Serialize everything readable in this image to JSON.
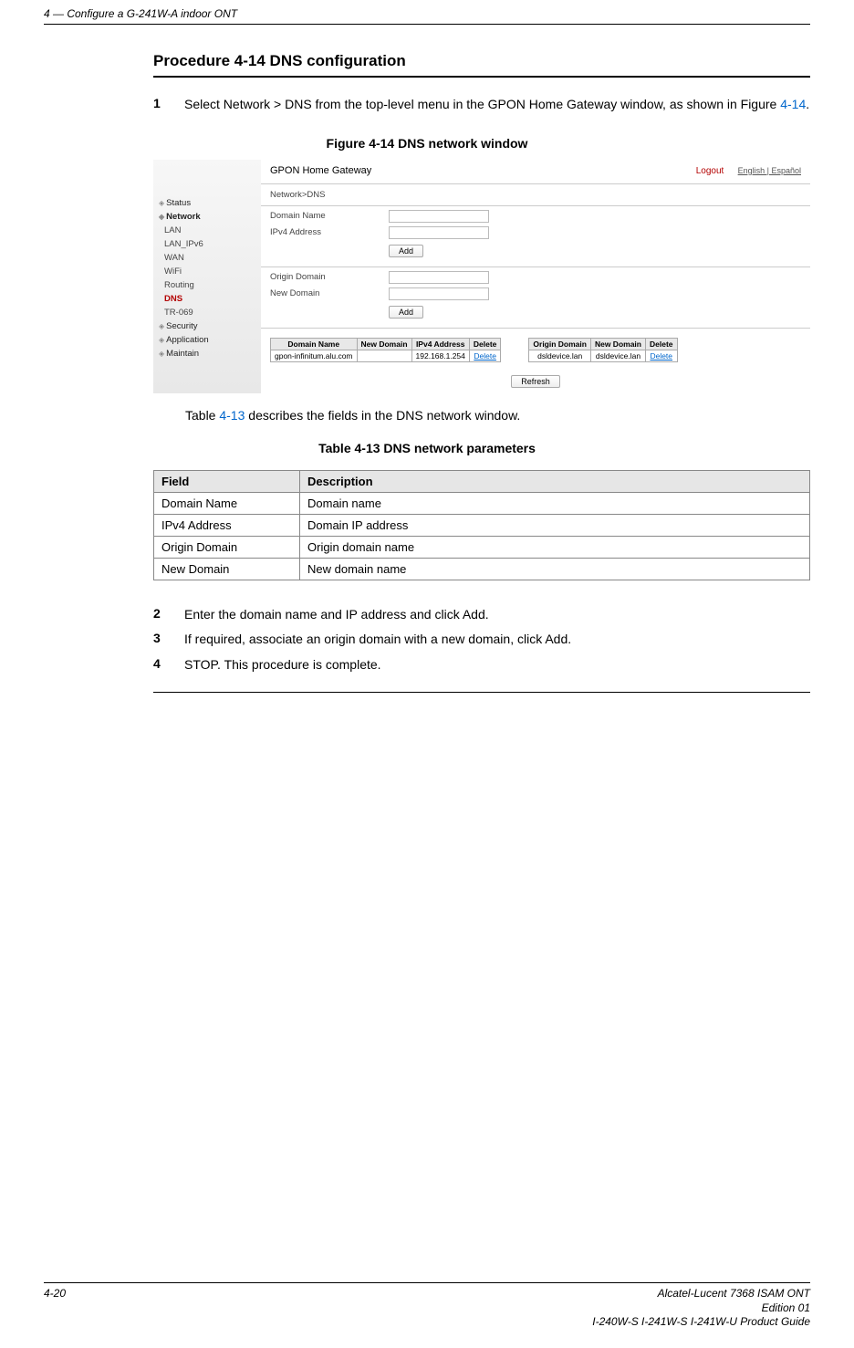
{
  "header": {
    "chapter_ref": "4 —  Configure a G-241W-A indoor ONT"
  },
  "procedure": {
    "title": "Procedure 4-14  DNS configuration",
    "steps": [
      {
        "n": "1",
        "pre": "Select Network > DNS from the top-level menu in the GPON Home Gateway window, as shown in Figure ",
        "link": "4-14",
        "post": "."
      },
      {
        "n": "2",
        "pre": "Enter the domain name and IP address and click Add.",
        "link": "",
        "post": ""
      },
      {
        "n": "3",
        "pre": "If required, associate an origin domain with a new domain, click Add.",
        "link": "",
        "post": ""
      },
      {
        "n": "4",
        "pre": "STOP. This procedure is complete.",
        "link": "",
        "post": ""
      }
    ]
  },
  "figure": {
    "caption": "Figure 4-14  DNS network window"
  },
  "screenshot": {
    "brand": "GPON Home Gateway",
    "logout": "Logout",
    "lang": "English | Español",
    "breadcrumb": "Network>DNS",
    "side_items": [
      {
        "t": "Status",
        "cls": "s"
      },
      {
        "t": "Network",
        "cls": "s red"
      },
      {
        "t": "LAN",
        "cls": ""
      },
      {
        "t": "LAN_IPv6",
        "cls": ""
      },
      {
        "t": "WAN",
        "cls": ""
      },
      {
        "t": "WiFi",
        "cls": ""
      },
      {
        "t": "Routing",
        "cls": ""
      },
      {
        "t": "DNS",
        "cls": "red-sub"
      },
      {
        "t": "TR-069",
        "cls": ""
      },
      {
        "t": "Security",
        "cls": "s"
      },
      {
        "t": "Application",
        "cls": "s"
      },
      {
        "t": "Maintain",
        "cls": "s"
      }
    ],
    "form1": [
      {
        "label": "Domain Name"
      },
      {
        "label": "IPv4 Address"
      }
    ],
    "form2": [
      {
        "label": "Origin Domain"
      },
      {
        "label": "New Domain"
      }
    ],
    "btn_add": "Add",
    "btn_refresh": "Refresh",
    "table_left": {
      "cols": [
        "Domain Name",
        "New Domain",
        "IPv4 Address",
        "Delete"
      ],
      "row": [
        "gpon-infinitum.alu.com",
        "",
        "192.168.1.254",
        "Delete"
      ]
    },
    "table_right": {
      "cols": [
        "Origin Domain",
        "New Domain",
        "Delete"
      ],
      "row": [
        "dsldevice.lan",
        "dsldevice.lan",
        "Delete"
      ]
    }
  },
  "reftext": {
    "pre": "Table ",
    "link": "4-13",
    "post": " describes the fields in the DNS network window."
  },
  "table": {
    "caption": "Table 4-13 DNS network parameters",
    "head": [
      "Field",
      "Description"
    ],
    "rows": [
      [
        "Domain Name",
        "Domain name"
      ],
      [
        "IPv4 Address",
        "Domain IP address"
      ],
      [
        "Origin Domain",
        "Origin domain name"
      ],
      [
        "New Domain",
        "New domain name"
      ]
    ]
  },
  "footer": {
    "page": "4-20",
    "r1": "Alcatel-Lucent 7368 ISAM ONT",
    "r2": "Edition 01",
    "r3": "I-240W-S I-241W-S I-241W-U Product Guide"
  }
}
